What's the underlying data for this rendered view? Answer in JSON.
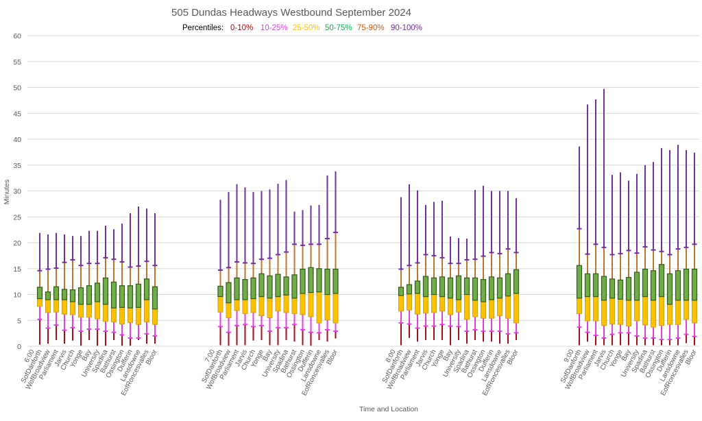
{
  "chart_data": {
    "type": "box",
    "title": "505 Dundas Headways Westbound September 2024",
    "legend": {
      "prefix": "Percentiles:",
      "placement": "top",
      "entries": [
        {
          "label": "0-10%",
          "color": "#c00000"
        },
        {
          "label": "10-25%",
          "color": "#e53ee0"
        },
        {
          "label": "25-50%",
          "color": "#ffc000"
        },
        {
          "label": "50-75%",
          "color": "#00b050"
        },
        {
          "label": "75-90%",
          "color": "#c55a11"
        },
        {
          "label": "90-100%",
          "color": "#7030a0"
        }
      ]
    },
    "xlabel": "Time and Location",
    "ylabel": "Minutes",
    "ylim": [
      0,
      60
    ],
    "yticks": [
      0,
      5,
      10,
      15,
      20,
      25,
      30,
      35,
      40,
      45,
      50,
      55,
      60
    ],
    "grid": true,
    "value_order": [
      "min",
      "p10",
      "p25",
      "p50",
      "p75",
      "p90",
      "max"
    ],
    "stations": [
      "SofDanforth",
      "WofBroadview",
      "Parliament",
      "Jarvis",
      "Church",
      "Yonge",
      "Bay",
      "University",
      "Spadina",
      "Bathurst",
      "Ossington",
      "Dufferin",
      "Lansdowne",
      "EofRoncesvalles",
      "Bloor"
    ],
    "groups": [
      {
        "label": "6:00",
        "values": [
          [
            0.3,
            5.2,
            7.7,
            9.2,
            11.4,
            14.6,
            21.9
          ],
          [
            0.5,
            3.5,
            6.5,
            9.0,
            10.5,
            14.9,
            21.6
          ],
          [
            1.2,
            4.1,
            6.6,
            9.0,
            11.5,
            15.1,
            21.9
          ],
          [
            0.5,
            3.1,
            6.2,
            9.0,
            11.0,
            16.2,
            21.6
          ],
          [
            1.1,
            3.6,
            6.1,
            8.6,
            10.9,
            16.7,
            21.3
          ],
          [
            0.1,
            2.9,
            5.6,
            8.1,
            11.3,
            15.6,
            21.3
          ],
          [
            1.2,
            3.3,
            5.6,
            8.1,
            11.7,
            16.0,
            22.3
          ],
          [
            0.1,
            3.3,
            5.3,
            8.6,
            12.2,
            16.0,
            22.3
          ],
          [
            0.1,
            2.9,
            4.8,
            8.1,
            13.2,
            17.1,
            23.3
          ],
          [
            1.2,
            2.7,
            4.7,
            7.4,
            12.4,
            16.8,
            22.6
          ],
          [
            0.1,
            2.2,
            4.3,
            7.5,
            11.7,
            16.3,
            23.7
          ],
          [
            0.1,
            1.6,
            4.6,
            7.4,
            11.7,
            15.3,
            25.7
          ],
          [
            1.2,
            1.6,
            4.2,
            7.5,
            12.0,
            15.5,
            27.0
          ],
          [
            0.5,
            2.4,
            4.7,
            9.0,
            13.0,
            16.4,
            26.6
          ],
          [
            0.5,
            2.0,
            4.2,
            7.2,
            11.5,
            15.6,
            25.7
          ]
        ]
      },
      {
        "label": "7:00",
        "values": [
          [
            0.2,
            3.8,
            6.6,
            9.6,
            11.6,
            14.7,
            28.3
          ],
          [
            0.1,
            2.7,
            5.5,
            8.4,
            12.3,
            15.2,
            29.8
          ],
          [
            0.2,
            4.0,
            6.9,
            9.0,
            13.2,
            16.3,
            31.3
          ],
          [
            0.2,
            4.2,
            6.3,
            9.0,
            12.9,
            16.1,
            30.7
          ],
          [
            1.1,
            3.8,
            6.5,
            9.2,
            13.2,
            16.0,
            29.8
          ],
          [
            1.2,
            4.0,
            5.9,
            9.6,
            14.0,
            16.8,
            30.0
          ],
          [
            0.2,
            2.9,
            5.5,
            9.3,
            13.6,
            17.0,
            30.3
          ],
          [
            0.2,
            3.6,
            6.8,
            9.6,
            13.9,
            17.7,
            31.4
          ],
          [
            1.2,
            3.6,
            6.5,
            9.9,
            13.4,
            18.2,
            32.1
          ],
          [
            0.9,
            4.2,
            6.3,
            9.3,
            13.8,
            19.7,
            26.0
          ],
          [
            0.2,
            3.2,
            6.1,
            10.2,
            14.9,
            19.5,
            26.3
          ],
          [
            0.1,
            2.7,
            5.7,
            10.4,
            15.2,
            19.7,
            27.2
          ],
          [
            1.2,
            2.6,
            4.5,
            10.5,
            15.0,
            19.7,
            27.3
          ],
          [
            0.9,
            3.2,
            5.1,
            10.0,
            14.9,
            20.8,
            33.0
          ],
          [
            1.5,
            2.9,
            4.5,
            10.2,
            14.9,
            22.0,
            33.8
          ]
        ]
      },
      {
        "label": "8:00",
        "values": [
          [
            0.2,
            4.5,
            6.8,
            9.8,
            11.4,
            14.9,
            28.8
          ],
          [
            1.6,
            4.3,
            7.0,
            10.1,
            11.9,
            15.6,
            31.3
          ],
          [
            0.9,
            3.5,
            6.2,
            10.2,
            12.6,
            16.1,
            30.1
          ],
          [
            1.2,
            3.9,
            6.4,
            9.6,
            13.5,
            17.7,
            27.3
          ],
          [
            1.2,
            3.9,
            6.5,
            10.0,
            13.2,
            17.5,
            27.9
          ],
          [
            1.2,
            4.2,
            6.8,
            9.6,
            13.4,
            17.1,
            28.1
          ],
          [
            0.2,
            3.9,
            6.1,
            9.3,
            13.2,
            16.0,
            21.2
          ],
          [
            1.2,
            3.8,
            6.6,
            9.0,
            13.6,
            16.0,
            20.9
          ],
          [
            0.5,
            2.9,
            5.2,
            10.0,
            13.2,
            16.7,
            20.8
          ],
          [
            1.2,
            3.2,
            5.7,
            8.9,
            13.2,
            16.8,
            30.2
          ],
          [
            0.9,
            2.9,
            5.4,
            8.6,
            12.9,
            17.4,
            31.0
          ],
          [
            0.9,
            2.9,
            5.4,
            9.0,
            13.4,
            18.1,
            30.0
          ],
          [
            0.5,
            2.9,
            5.9,
            9.3,
            13.2,
            17.9,
            30.0
          ],
          [
            0.5,
            2.4,
            5.4,
            9.7,
            14.0,
            18.8,
            30.0
          ],
          [
            1.2,
            2.6,
            4.5,
            10.2,
            14.8,
            18.1,
            28.6
          ]
        ]
      },
      {
        "label": "9:00",
        "values": [
          [
            0.2,
            3.7,
            6.3,
            9.3,
            15.6,
            22.7,
            38.6
          ],
          [
            0.9,
            2.7,
            4.9,
            9.6,
            14.0,
            17.8,
            46.7
          ],
          [
            0.2,
            2.1,
            4.9,
            9.6,
            14.0,
            19.7,
            47.7
          ],
          [
            0.2,
            1.6,
            4.0,
            8.9,
            13.5,
            19.1,
            49.7
          ],
          [
            0.2,
            2.3,
            4.3,
            9.3,
            13.0,
            17.7,
            33.1
          ],
          [
            0.2,
            2.6,
            4.2,
            9.1,
            12.8,
            17.9,
            33.6
          ],
          [
            0.2,
            2.6,
            3.9,
            8.9,
            13.3,
            18.5,
            32.0
          ],
          [
            0.2,
            2.0,
            4.9,
            8.9,
            14.3,
            18.0,
            33.3
          ],
          [
            0.2,
            1.6,
            4.1,
            9.6,
            14.9,
            19.2,
            35.0
          ],
          [
            0.2,
            1.6,
            3.7,
            8.9,
            14.6,
            18.6,
            35.6
          ],
          [
            0.2,
            1.3,
            4.0,
            9.6,
            15.8,
            18.3,
            38.3
          ],
          [
            0.2,
            1.3,
            4.2,
            8.1,
            14.0,
            17.7,
            37.9
          ],
          [
            0.2,
            1.6,
            4.2,
            8.9,
            14.6,
            18.8,
            38.9
          ],
          [
            0.6,
            2.3,
            5.2,
            8.9,
            14.9,
            19.1,
            37.9
          ],
          [
            0.2,
            1.9,
            4.5,
            8.9,
            14.9,
            19.7,
            37.4
          ]
        ]
      }
    ],
    "colors": {
      "p0_p10": "#a50f15",
      "p10_p25": "#e040dd",
      "p25_p50_fill": "#ffc000",
      "p25_p50_border": "#c9a227",
      "p50_p75_fill": "#70ad47",
      "p50_p75_border": "#2f5a1c",
      "p75_p90": "#c0742d",
      "p90_p100": "#7030a0"
    }
  }
}
